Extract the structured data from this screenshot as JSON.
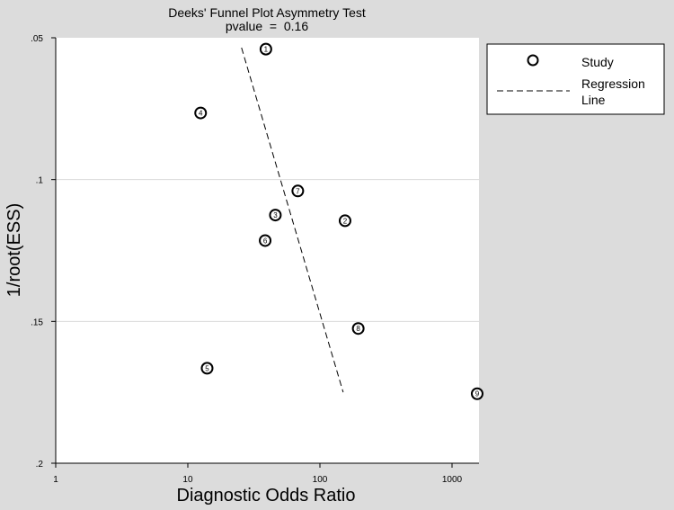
{
  "chart_data": {
    "type": "scatter",
    "title": "Deeks' Funnel Plot Asymmetry Test",
    "subtitle": "pvalue  =  0.16",
    "xlabel": "Diagnostic Odds Ratio",
    "ylabel": "1/root(ESS)",
    "x_scale": "log",
    "xlim": [
      1,
      1600
    ],
    "ylim": [
      0.2,
      0.05
    ],
    "y_reversed": true,
    "x_ticks": [
      1,
      10,
      100,
      1000
    ],
    "x_tick_labels": [
      "1",
      "10",
      "100",
      "1000"
    ],
    "y_ticks": [
      0.05,
      0.1,
      0.15,
      0.2
    ],
    "y_tick_labels": [
      ".05",
      ".1",
      ".15",
      ".2"
    ],
    "grid": "horizontal",
    "legend_position": "right",
    "series": [
      {
        "name": "Study",
        "marker": "circle",
        "points": [
          {
            "label": "1",
            "x": 39,
            "y": 0.054
          },
          {
            "label": "2",
            "x": 155,
            "y": 0.1145
          },
          {
            "label": "3",
            "x": 46,
            "y": 0.1125
          },
          {
            "label": "4",
            "x": 12.5,
            "y": 0.0765
          },
          {
            "label": "5",
            "x": 14,
            "y": 0.1665
          },
          {
            "label": "6",
            "x": 38.5,
            "y": 0.1215
          },
          {
            "label": "7",
            "x": 68,
            "y": 0.104
          },
          {
            "label": "8",
            "x": 195,
            "y": 0.1525
          },
          {
            "label": "9",
            "x": 1550,
            "y": 0.1755
          }
        ]
      },
      {
        "name": "Regression Line",
        "style": "dashed",
        "points": [
          {
            "x": 25.5,
            "y": 0.0535
          },
          {
            "x": 150,
            "y": 0.175
          }
        ]
      }
    ],
    "legend": [
      {
        "key": "study",
        "label": "Study"
      },
      {
        "key": "regression",
        "label": "Regression Line"
      }
    ],
    "colors": {
      "background": "#dcdcdc",
      "plot_area": "#ffffff",
      "gridline": "#d9d9d9",
      "ink": "#000000"
    }
  }
}
